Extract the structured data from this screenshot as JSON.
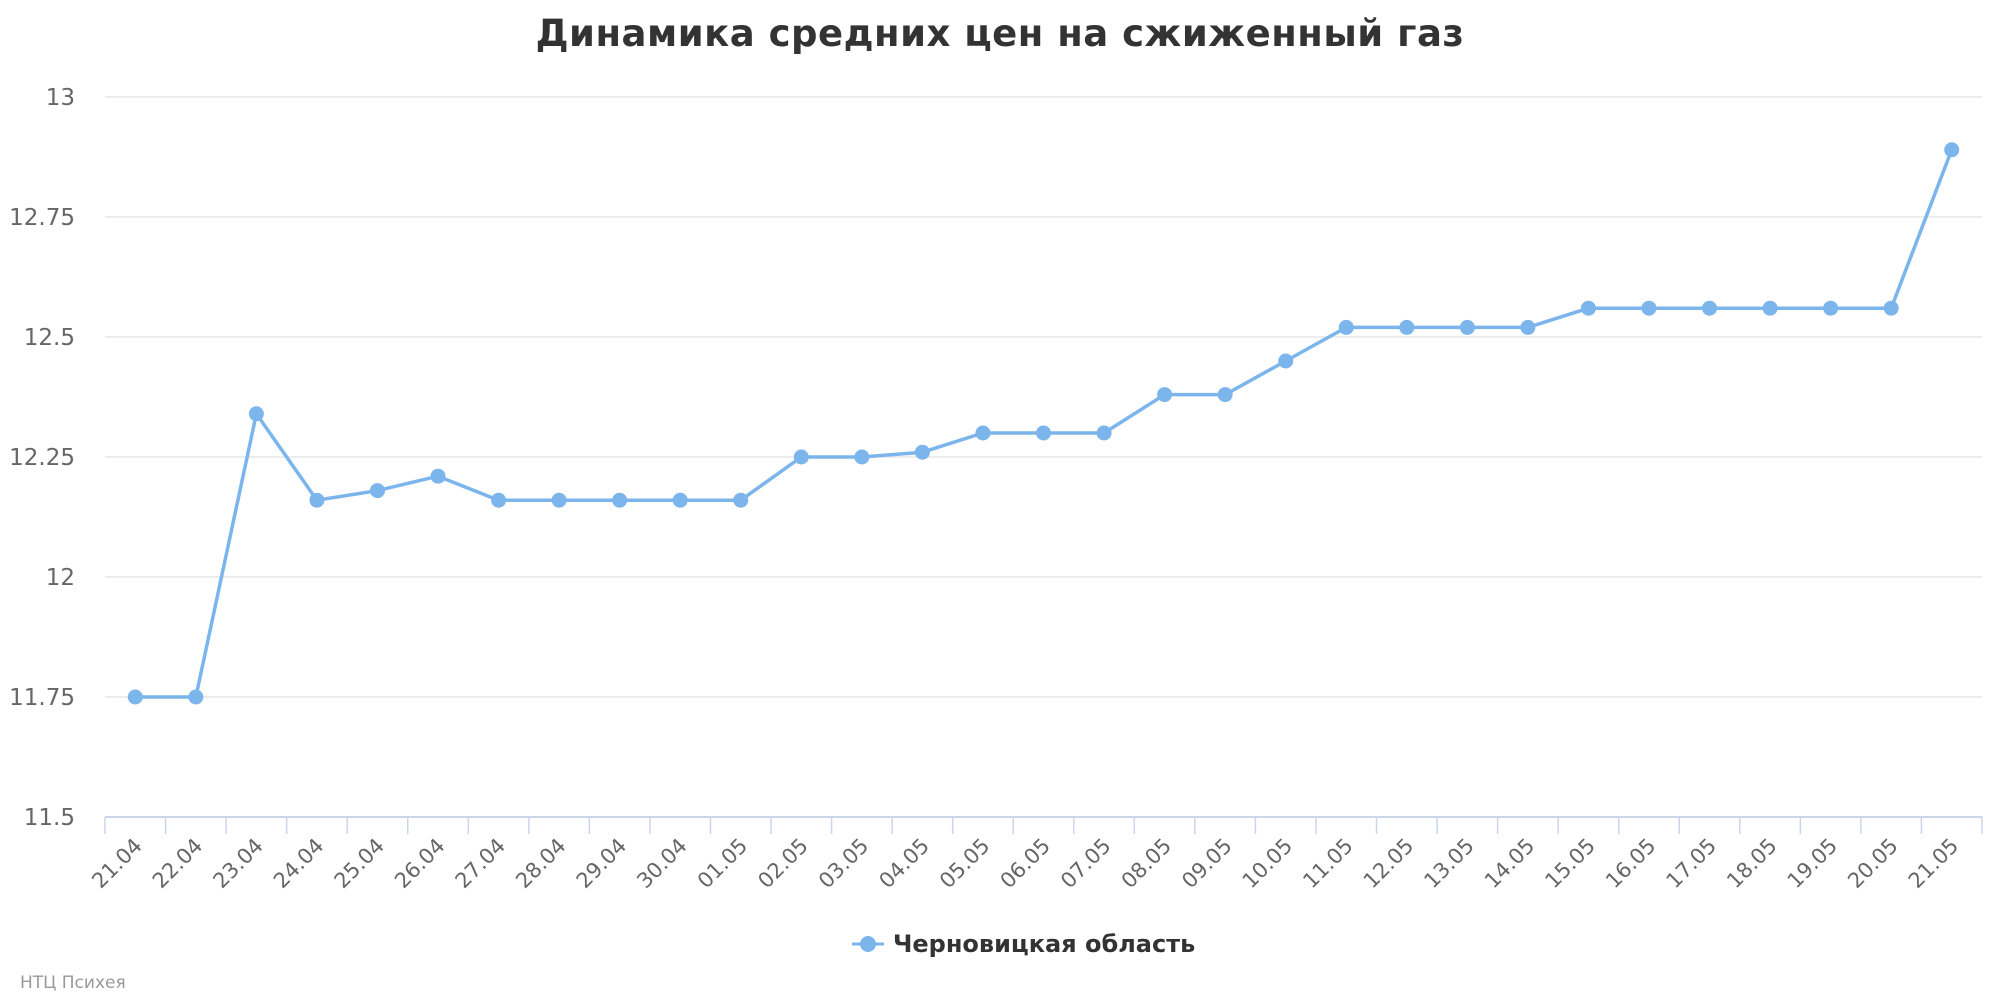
{
  "chart_data": {
    "type": "line",
    "title": "Динамика средних цен на сжиженный газ",
    "categories": [
      "21.04",
      "22.04",
      "23.04",
      "24.04",
      "25.04",
      "26.04",
      "27.04",
      "28.04",
      "29.04",
      "30.04",
      "01.05",
      "02.05",
      "03.05",
      "04.05",
      "05.05",
      "06.05",
      "07.05",
      "08.05",
      "09.05",
      "10.05",
      "11.05",
      "12.05",
      "13.05",
      "14.05",
      "15.05",
      "16.05",
      "17.05",
      "18.05",
      "19.05",
      "20.05",
      "21.05"
    ],
    "series": [
      {
        "name": "Черновицкая область",
        "color": "#7cb5ec",
        "values": [
          11.75,
          11.75,
          12.34,
          12.16,
          12.18,
          12.21,
          12.16,
          12.16,
          12.16,
          12.16,
          12.16,
          12.25,
          12.25,
          12.26,
          12.3,
          12.3,
          12.3,
          12.38,
          12.38,
          12.45,
          12.52,
          12.52,
          12.52,
          12.52,
          12.56,
          12.56,
          12.56,
          12.56,
          12.56,
          12.56,
          12.89
        ]
      }
    ],
    "ylim": [
      11.5,
      13
    ],
    "yticks": [
      "11.5",
      "11.75",
      "12",
      "12.25",
      "12.5",
      "12.75",
      "13"
    ],
    "grid": true,
    "legend_position": "bottom-center"
  },
  "credit": "НТЦ Психея"
}
